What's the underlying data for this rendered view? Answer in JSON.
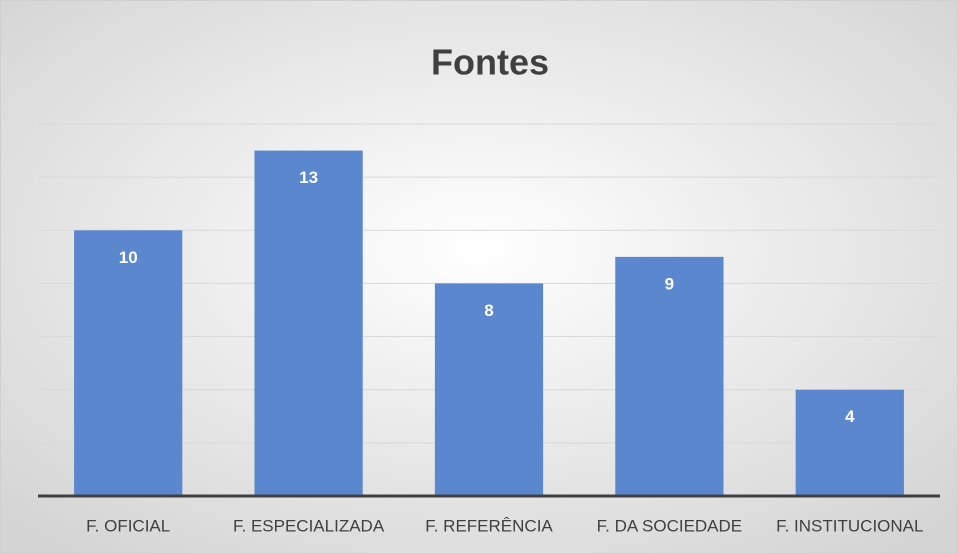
{
  "chart_data": {
    "type": "bar",
    "title": "Fontes",
    "categories": [
      "F. OFICIAL",
      "F. ESPECIALIZADA",
      "F. REFERÊNCIA",
      "F. DA SOCIEDADE",
      "F. INSTITUCIONAL"
    ],
    "values": [
      10,
      13,
      8,
      9,
      4
    ],
    "color": "#5b87cf",
    "ylim": [
      0,
      14
    ],
    "yticks": [
      0,
      2,
      4,
      6,
      8,
      10,
      12,
      14
    ],
    "grid": true
  }
}
